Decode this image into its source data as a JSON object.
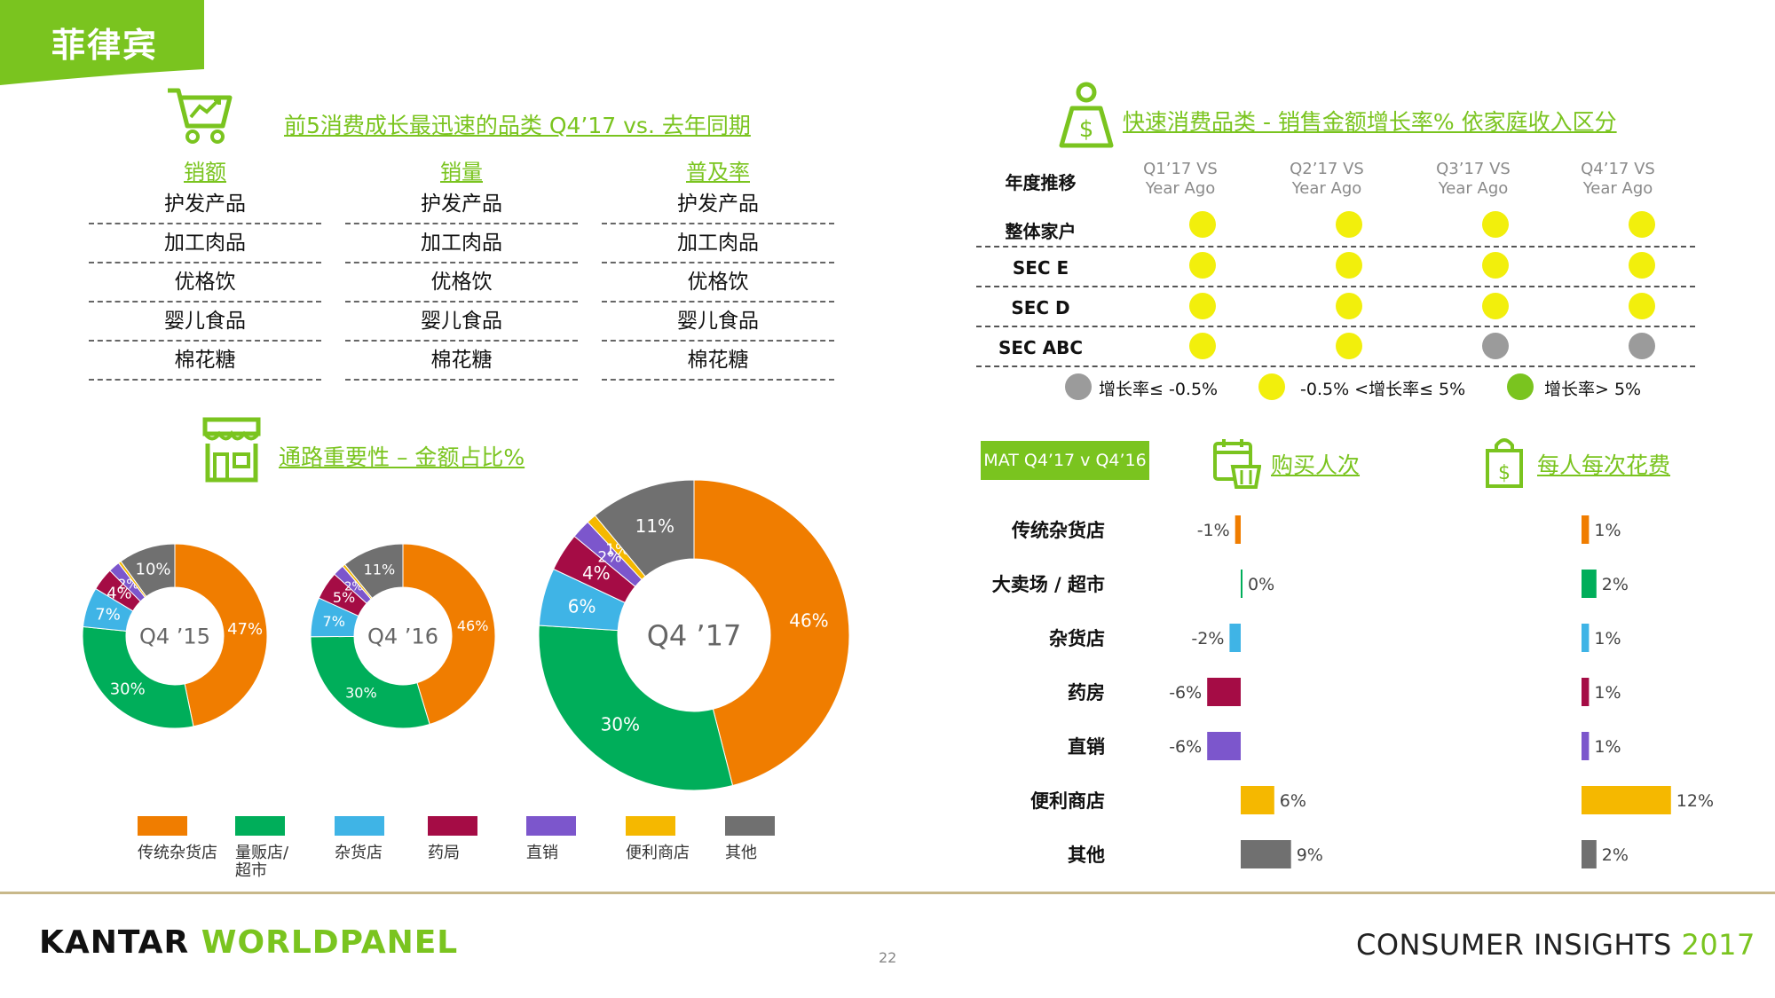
{
  "header": {
    "country": "菲律宾"
  },
  "top_categories": {
    "title": "前5消费成长最迅速的品类 Q4’17 vs. 去年同期",
    "columns": [
      {
        "label": "销额",
        "items": [
          "护发产品",
          "加工肉品",
          "优格饮",
          "婴儿食品",
          "棉花糖"
        ]
      },
      {
        "label": "销量",
        "items": [
          "护发产品",
          "加工肉品",
          "优格饮",
          "婴儿食品",
          "棉花糖"
        ]
      },
      {
        "label": "普及率",
        "items": [
          "护发产品",
          "加工肉品",
          "优格饮",
          "婴儿食品",
          "棉花糖"
        ]
      }
    ]
  },
  "income_grid": {
    "title": "快速消费品类 - 销售金额增长率% 依家庭收入区分",
    "row_header": "年度推移",
    "periods": [
      {
        "line1": "Q1’17 VS",
        "line2": "Year Ago"
      },
      {
        "line1": "Q2’17 VS",
        "line2": "Year Ago"
      },
      {
        "line1": "Q3’17 VS",
        "line2": "Year Ago"
      },
      {
        "line1": "Q4’17 VS",
        "line2": "Year Ago"
      }
    ],
    "rows": [
      {
        "label": "整体家户",
        "status": [
          "mid",
          "mid",
          "mid",
          "mid"
        ]
      },
      {
        "label": "SEC E",
        "status": [
          "mid",
          "mid",
          "mid",
          "mid"
        ]
      },
      {
        "label": "SEC D",
        "status": [
          "mid",
          "mid",
          "mid",
          "mid"
        ]
      },
      {
        "label": "SEC ABC",
        "status": [
          "mid",
          "mid",
          "low",
          "low"
        ]
      }
    ],
    "legend": [
      {
        "key": "low",
        "label": "增长率≤ -0.5%",
        "color": "#9b9b9b"
      },
      {
        "key": "mid",
        "label": "-0.5% <增长率≤  5%",
        "color": "#f2ef0c"
      },
      {
        "key": "high",
        "label": "增长率> 5%",
        "color": "#7ac41f"
      }
    ]
  },
  "channel_title": "通路重要性 – 金额占比%",
  "channel_legend": [
    {
      "label": "传统杂货店",
      "color": "#f07d00"
    },
    {
      "label": "量贩店/超市",
      "color": "#00ae5a"
    },
    {
      "label": "杂货店",
      "color": "#3fb4e6"
    },
    {
      "label": "药局",
      "color": "#a50c45"
    },
    {
      "label": "直销",
      "color": "#7c56cc"
    },
    {
      "label": "便利商店",
      "color": "#f5b800"
    },
    {
      "label": "其他",
      "color": "#707070"
    }
  ],
  "mat_badge": "MAT Q4’17 v Q4’16",
  "shoppers_header": "购买人次",
  "spend_header": "每人每次花费",
  "chart_data": [
    {
      "type": "pie",
      "title": "Q4 ’15",
      "categories": [
        "传统杂货店",
        "量贩店/超市",
        "杂货店",
        "药局",
        "直销",
        "便利商店",
        "其他"
      ],
      "values": [
        47,
        30,
        7,
        4,
        2,
        0.5,
        10
      ],
      "labels": [
        "47%",
        "30%",
        "7%",
        "4%",
        "2%",
        "",
        "10%"
      ]
    },
    {
      "type": "pie",
      "title": "Q4 ’16",
      "categories": [
        "传统杂货店",
        "量贩店/超市",
        "杂货店",
        "药局",
        "直销",
        "便利商店",
        "其他"
      ],
      "values": [
        46,
        30,
        7,
        5,
        2,
        0.5,
        11
      ],
      "labels": [
        "46%",
        "30%",
        "7%",
        "5%",
        "2%",
        "",
        "11%"
      ]
    },
    {
      "type": "pie",
      "title": "Q4 ’17",
      "categories": [
        "传统杂货店",
        "量贩店/超市",
        "杂货店",
        "药局",
        "直销",
        "便利商店",
        "其他"
      ],
      "values": [
        46,
        30,
        6,
        4,
        2,
        1,
        11
      ],
      "labels": [
        "46%",
        "30%",
        "6%",
        "4%",
        "2%",
        "1%",
        "11%"
      ]
    },
    {
      "type": "bar",
      "title": "购买人次",
      "categories": [
        "传统杂货店",
        "大卖场 / 超市",
        "杂货店",
        "药房",
        "直销",
        "便利商店",
        "其他"
      ],
      "values": [
        -1,
        0,
        -2,
        -6,
        -6,
        6,
        9
      ],
      "labels": [
        "-1%",
        "0%",
        "-2%",
        "-6%",
        "-6%",
        "6%",
        "9%"
      ],
      "colors": [
        "#f07d00",
        "#00ae5a",
        "#3fb4e6",
        "#a50c45",
        "#7c56cc",
        "#f5b800",
        "#707070"
      ]
    },
    {
      "type": "bar",
      "title": "每人每次花费",
      "categories": [
        "传统杂货店",
        "大卖场 / 超市",
        "杂货店",
        "药房",
        "直销",
        "便利商店",
        "其他"
      ],
      "values": [
        1,
        2,
        1,
        1,
        1,
        12,
        2
      ],
      "labels": [
        "1%",
        "2%",
        "1%",
        "1%",
        "1%",
        "12%",
        "2%"
      ],
      "colors": [
        "#f07d00",
        "#00ae5a",
        "#3fb4e6",
        "#a50c45",
        "#7c56cc",
        "#f5b800",
        "#707070"
      ]
    }
  ],
  "footer": {
    "brand_left": "KANTAR",
    "brand_right": "WORLDPANEL",
    "page": "22",
    "tagline": "CONSUMER INSIGHTS",
    "year": "2017"
  }
}
